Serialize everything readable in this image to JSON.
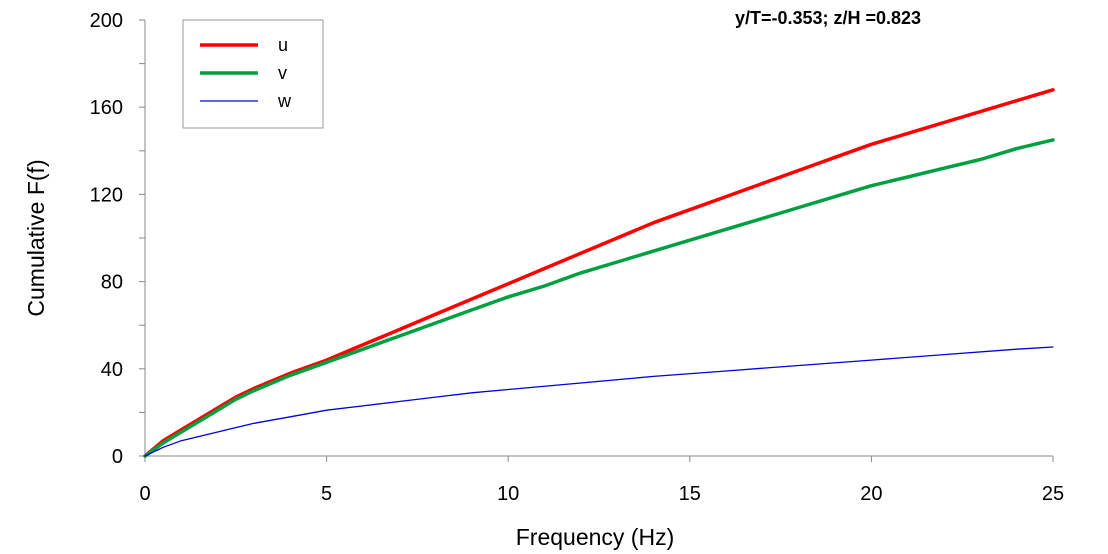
{
  "chart_data": {
    "type": "line",
    "title": "y/T=-0.353; z/H =0.823",
    "xlabel": "Frequency (Hz)",
    "ylabel": "Cumulative F(f)",
    "xlim": [
      0,
      25
    ],
    "ylim": [
      0,
      200
    ],
    "xticks": [
      0,
      5,
      10,
      15,
      20,
      25
    ],
    "yticks": [
      0,
      40,
      80,
      120,
      160,
      200
    ],
    "grid": false,
    "legend_position": "top-left",
    "series": [
      {
        "name": "u",
        "color": "#ff0000",
        "x": [
          0,
          0.5,
          1,
          1.5,
          2,
          2.5,
          3,
          4,
          5,
          6,
          7,
          8,
          9,
          10,
          11,
          12,
          13,
          14,
          15,
          16,
          17,
          18,
          19,
          20,
          21,
          22,
          23,
          24,
          25
        ],
        "y": [
          0,
          7,
          12,
          17,
          22,
          27,
          31,
          38,
          44,
          51,
          58,
          65,
          72,
          79,
          86,
          93,
          100,
          107,
          113,
          119,
          125,
          131,
          137,
          143,
          148,
          153,
          158,
          163,
          168
        ]
      },
      {
        "name": "v",
        "color": "#00a040",
        "x": [
          0,
          0.5,
          1,
          1.5,
          2,
          2.5,
          3,
          4,
          5,
          6,
          7,
          8,
          9,
          10,
          11,
          12,
          13,
          14,
          15,
          16,
          17,
          18,
          19,
          20,
          21,
          22,
          23,
          24,
          25
        ],
        "y": [
          0,
          6,
          11,
          16,
          21,
          26,
          30,
          37,
          43,
          49,
          55,
          61,
          67,
          73,
          78,
          84,
          89,
          94,
          99,
          104,
          109,
          114,
          119,
          124,
          128,
          132,
          136,
          141,
          145
        ]
      },
      {
        "name": "w",
        "color": "#0000dd",
        "x": [
          0,
          0.5,
          1,
          1.5,
          2,
          3,
          4,
          5,
          6,
          7,
          8,
          9,
          10,
          12,
          14,
          16,
          18,
          20,
          22,
          24,
          25
        ],
        "y": [
          0,
          4,
          7,
          9,
          11,
          15,
          18,
          21,
          23,
          25,
          27,
          29,
          30.5,
          33.5,
          36.5,
          39,
          41.5,
          44,
          46.5,
          49,
          50
        ]
      }
    ]
  }
}
